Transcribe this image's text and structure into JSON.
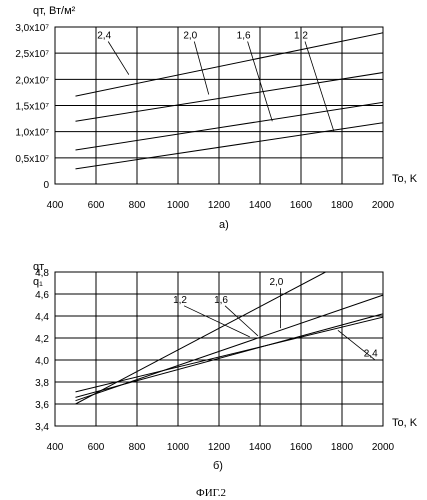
{
  "figure_label": "ФИГ.2",
  "chart_data": [
    {
      "type": "line",
      "caption": "а)",
      "ylabel": "qт, Вт/м²",
      "xlabel": "To, K",
      "xlim": [
        400,
        2000
      ],
      "ylim": [
        0,
        30000000
      ],
      "grid": true,
      "x_ticks": [
        "400",
        "600",
        "800",
        "1000",
        "1200",
        "1400",
        "1600",
        "1800",
        "2000"
      ],
      "y_ticks": [
        "0",
        "0,5x10⁷",
        "1,0x10⁷",
        "1,5x10⁷",
        "2,0x10⁷",
        "2,5x10⁷",
        "3,0x10⁷"
      ],
      "series": [
        {
          "name": "2,4",
          "x": [
            500,
            2000
          ],
          "y": [
            16800000,
            28900000
          ],
          "label_at": [
            640,
            27800000
          ],
          "leader_to": [
            760,
            20900000
          ]
        },
        {
          "name": "2,0",
          "x": [
            500,
            2000
          ],
          "y": [
            12000000,
            21300000
          ],
          "label_at": [
            1060,
            27800000
          ],
          "leader_to": [
            1150,
            17100000
          ]
        },
        {
          "name": "1,6",
          "x": [
            500,
            2000
          ],
          "y": [
            6500000,
            15600000
          ],
          "label_at": [
            1320,
            27800000
          ],
          "leader_to": [
            1460,
            12000000
          ]
        },
        {
          "name": "1,2",
          "x": [
            500,
            2000
          ],
          "y": [
            2900000,
            11700000
          ],
          "label_at": [
            1600,
            27800000
          ],
          "leader_to": [
            1760,
            10100000
          ]
        }
      ]
    },
    {
      "type": "line",
      "caption": "б)",
      "ylabel": "qт",
      "ylabel2": "q₁",
      "xlabel": "To, K",
      "xlim": [
        400,
        2000
      ],
      "ylim": [
        3.4,
        4.8
      ],
      "grid": true,
      "x_ticks": [
        "400",
        "600",
        "800",
        "1000",
        "1200",
        "1400",
        "1600",
        "1800",
        "2000"
      ],
      "y_ticks": [
        "3,4",
        "3,6",
        "3,8",
        "4,0",
        "4,2",
        "4,4",
        "4,6",
        "4,8"
      ],
      "series": [
        {
          "name": "1,2",
          "x": [
            500,
            1720,
            2000
          ],
          "y": [
            3.6,
            4.8,
            4.8
          ],
          "label_at": [
            1010,
            4.52
          ],
          "leader_to": [
            1350,
            4.21
          ]
        },
        {
          "name": "1,6",
          "x": [
            500,
            2000
          ],
          "y": [
            3.66,
            4.42
          ],
          "label_at": [
            1210,
            4.52
          ],
          "leader_to": [
            1390,
            4.22
          ]
        },
        {
          "name": "2,0",
          "x": [
            500,
            2000
          ],
          "y": [
            3.63,
            4.59
          ],
          "label_at": [
            1480,
            4.68
          ],
          "leader_to": [
            1500,
            4.29
          ]
        },
        {
          "name": "2,4",
          "x": [
            500,
            2000
          ],
          "y": [
            3.71,
            4.39
          ],
          "label_at": [
            1940,
            4.03
          ],
          "leader_to": [
            1780,
            4.27
          ]
        }
      ]
    }
  ]
}
